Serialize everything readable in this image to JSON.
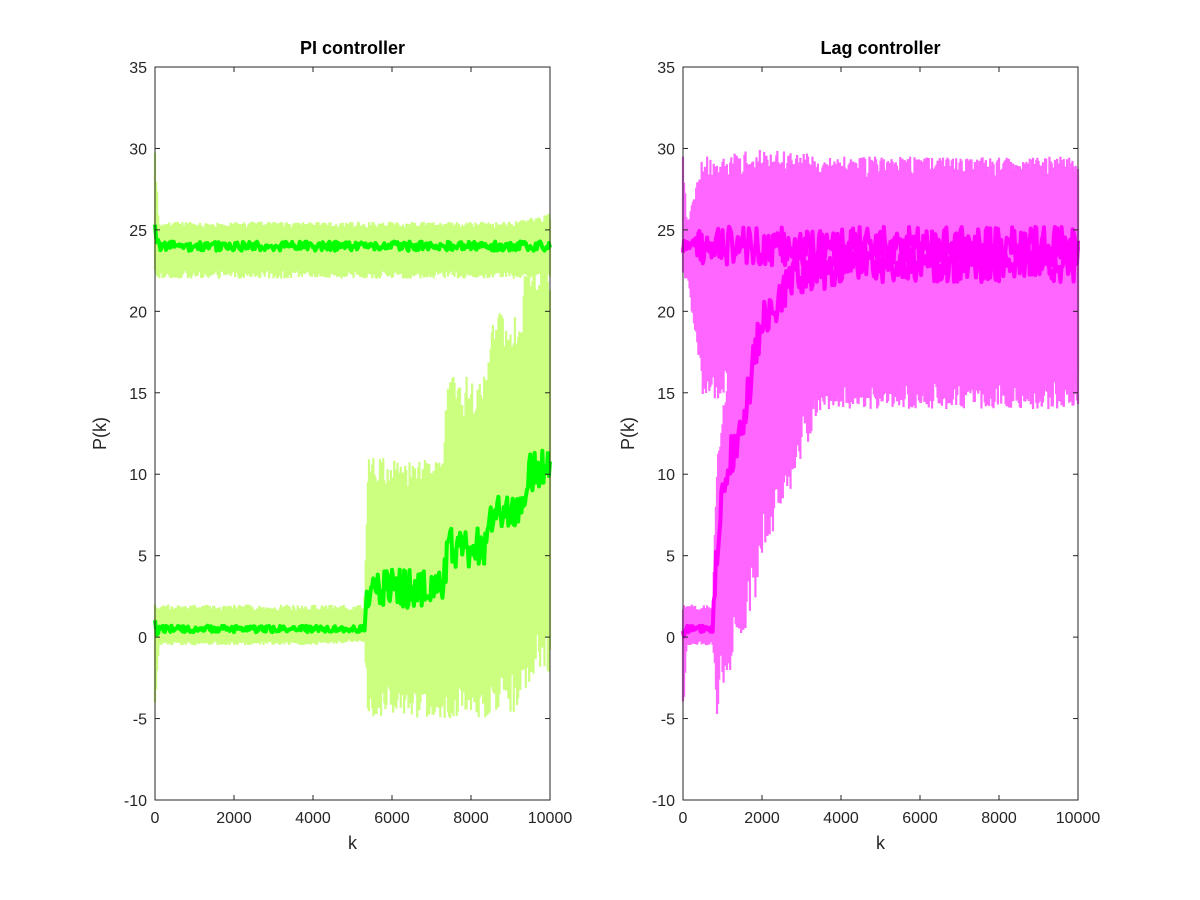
{
  "chart_data": [
    {
      "type": "line",
      "title": "PI controller",
      "xlabel": "k",
      "ylabel": "P(k)",
      "xlim": [
        0,
        10000
      ],
      "ylim": [
        -10,
        35
      ],
      "xticks": [
        "0",
        "2000",
        "4000",
        "6000",
        "8000",
        "10000"
      ],
      "yticks": [
        "-10",
        "-5",
        "0",
        "5",
        "10",
        "15",
        "20",
        "25",
        "30",
        "35"
      ],
      "grid": false,
      "colors": {
        "band": "#ccff80",
        "main": "#00ff00"
      },
      "series": [
        {
          "role": "noisy-upper",
          "x": [
            0,
            100,
            1000,
            3000,
            5000,
            6000,
            7000,
            8000,
            9000,
            10000
          ],
          "y_mean": [
            25,
            24,
            24,
            24,
            24,
            24,
            24,
            24,
            24,
            24
          ],
          "y_low": [
            22,
            22,
            22,
            22,
            22,
            22,
            22,
            22,
            22,
            22
          ],
          "y_high": [
            30,
            25.5,
            25.5,
            25.5,
            25.5,
            25.5,
            25.5,
            25.5,
            25.5,
            26
          ]
        },
        {
          "role": "noisy-lower",
          "x": [
            0,
            100,
            2000,
            4000,
            5300,
            5400,
            6500,
            7300,
            7400,
            8400,
            8500,
            9300,
            9400,
            10000
          ],
          "y_mean": [
            0.5,
            0.5,
            0.5,
            0.5,
            0.5,
            3,
            3,
            3,
            5.5,
            5.5,
            7.5,
            7.5,
            10,
            10.5
          ],
          "y_low": [
            -5,
            -0.5,
            -0.5,
            -0.5,
            -0.3,
            -5,
            -5,
            -5,
            -5,
            -5,
            -5,
            -4.5,
            -3,
            -2.5
          ],
          "y_high": [
            2,
            2,
            2,
            2,
            2,
            11,
            11,
            11,
            16,
            16,
            20,
            20,
            24,
            24
          ]
        }
      ]
    },
    {
      "type": "line",
      "title": "Lag controller",
      "xlabel": "k",
      "ylabel": "P(k)",
      "xlim": [
        0,
        10000
      ],
      "ylim": [
        -10,
        35
      ],
      "xticks": [
        "0",
        "2000",
        "4000",
        "6000",
        "8000",
        "10000"
      ],
      "yticks": [
        "-10",
        "-5",
        "0",
        "5",
        "10",
        "15",
        "20",
        "25",
        "30",
        "35"
      ],
      "grid": false,
      "colors": {
        "band": "#ff66ff",
        "main": "#ff00ff"
      },
      "series": [
        {
          "role": "noisy-upper",
          "x": [
            0,
            100,
            500,
            2000,
            4000,
            6000,
            8000,
            10000
          ],
          "y_mean": [
            24,
            24,
            24,
            24,
            24,
            24,
            24,
            24
          ],
          "y_low": [
            22,
            22,
            14.5,
            14,
            14,
            14,
            14,
            14
          ],
          "y_high": [
            29.5,
            25.5,
            29.5,
            30,
            29.5,
            29.5,
            29.5,
            29.5
          ]
        },
        {
          "role": "noisy-lower",
          "x": [
            0,
            100,
            750,
            850,
            1000,
            1200,
            1500,
            1800,
            2000,
            2400,
            2800,
            3200,
            3600,
            4000,
            6000,
            8000,
            10000
          ],
          "y_mean": [
            0.5,
            0.5,
            0.5,
            5,
            9,
            11,
            13,
            17,
            19.5,
            20.5,
            22,
            22.5,
            22.5,
            23,
            23,
            23,
            23
          ],
          "y_low": [
            -5,
            -0.5,
            -0.5,
            -5,
            -3,
            -2,
            0,
            2,
            4,
            7,
            9.5,
            12,
            14,
            14,
            14,
            14,
            14
          ],
          "y_high": [
            2,
            2,
            2,
            10.5,
            14,
            17,
            21,
            25,
            28,
            29,
            29.5,
            29.5,
            29.5,
            29.5,
            29.5,
            29.5,
            29.5
          ]
        }
      ]
    }
  ]
}
